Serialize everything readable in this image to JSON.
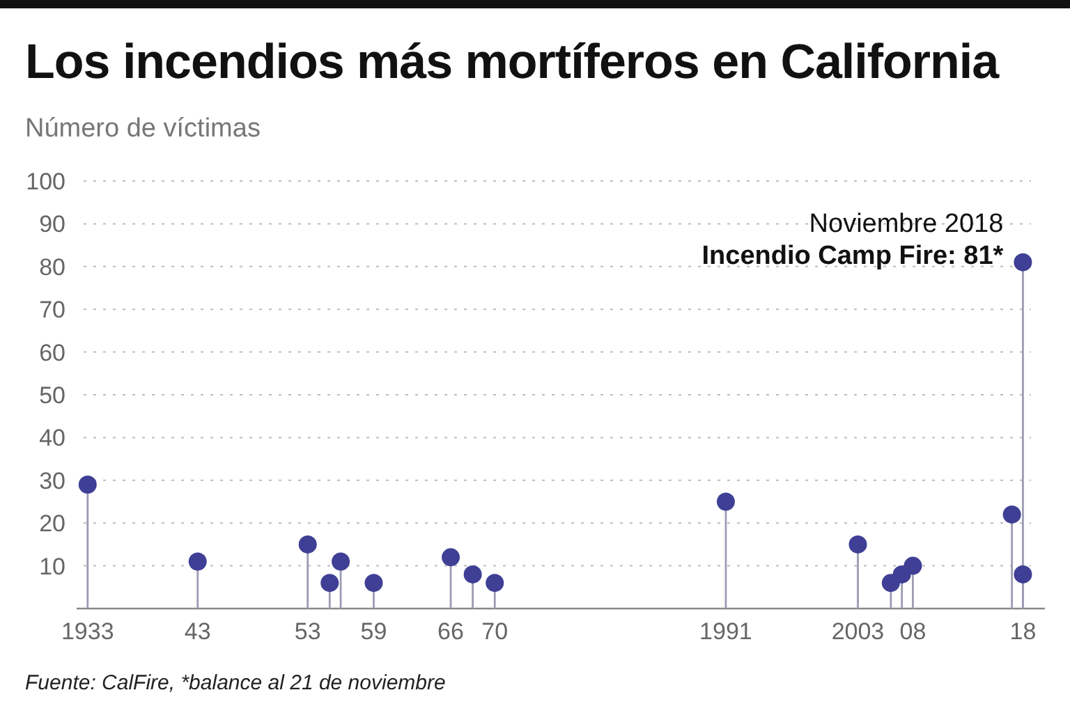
{
  "chart_data": {
    "type": "lollipop",
    "title": "Los incendios más mortíferos en California",
    "ylabel": "Número de víctimas",
    "x": [
      1933,
      1943,
      1953,
      1955,
      1956,
      1959,
      1966,
      1968,
      1970,
      1991,
      2003,
      2006,
      2007,
      2008,
      2017,
      2018,
      2018
    ],
    "series": [
      {
        "color": "#3f3f95",
        "values": [
          29,
          11,
          15,
          6,
          11,
          6,
          12,
          8,
          6,
          25,
          15,
          6,
          8,
          10,
          22,
          8,
          81
        ]
      }
    ],
    "xlim": [
      1932,
      2020
    ],
    "xticks": [
      1933,
      {
        "value": 1943,
        "label": "43"
      },
      {
        "value": 1953,
        "label": "53"
      },
      {
        "value": 1959,
        "label": "59"
      },
      {
        "value": 1966,
        "label": "66"
      },
      {
        "value": 1970,
        "label": "70"
      },
      1991,
      2003,
      {
        "value": 2008,
        "label": "08"
      },
      {
        "value": 2018,
        "label": "18"
      }
    ],
    "ylim": [
      0,
      100
    ],
    "yticks": [
      10,
      20,
      30,
      40,
      50,
      60,
      70,
      80,
      90,
      100
    ],
    "grid": "y",
    "marker": "circle",
    "annotations": [
      {
        "text": "Noviembre 2018\nIncendio Camp Fire: 81*",
        "x": 2018,
        "y": 81
      },
      "Fuente: CalFire, *balance al 21 de noviembre"
    ]
  }
}
